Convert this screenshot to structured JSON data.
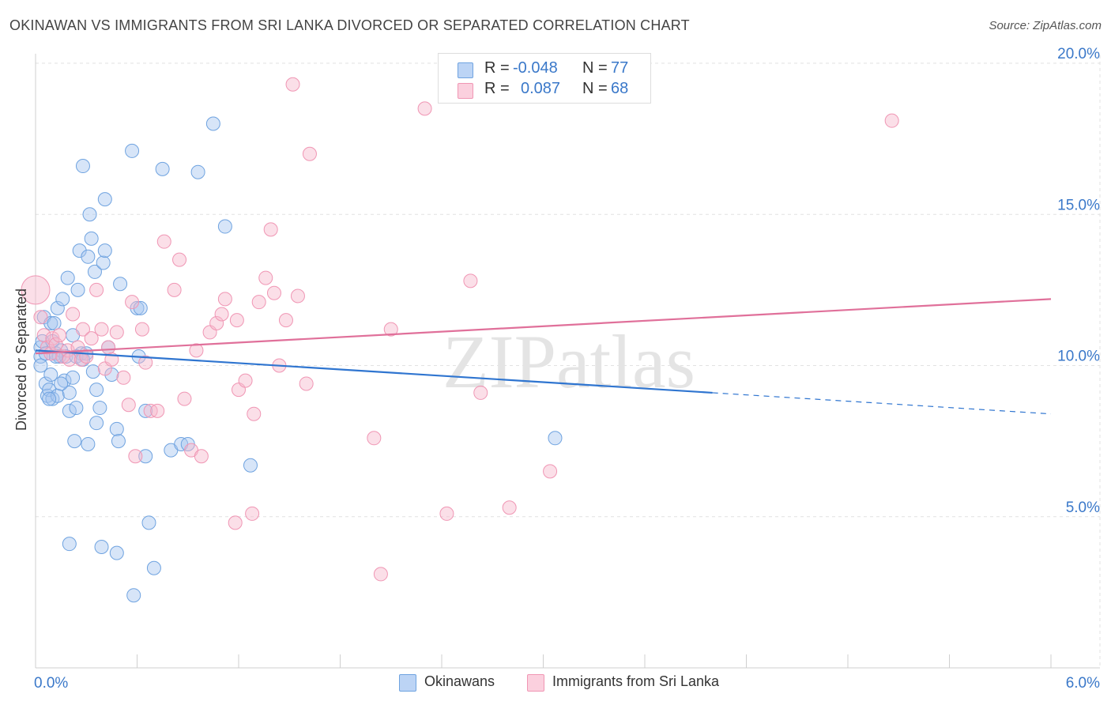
{
  "title": "OKINAWAN VS IMMIGRANTS FROM SRI LANKA DIVORCED OR SEPARATED CORRELATION CHART",
  "source": "Source: ZipAtlas.com",
  "watermark": "ZIPatlas",
  "legend_top": [
    {
      "r_label": "R =",
      "r_value": "-0.048",
      "n_label": "N =",
      "n_value": "77",
      "color": "#6fa3e0"
    },
    {
      "r_label": "R =",
      "r_value": "0.087",
      "n_label": "N =",
      "n_value": "68",
      "color": "#f096b4"
    }
  ],
  "legend_bottom": [
    {
      "label": "Okinawans",
      "color": "#6fa3e0"
    },
    {
      "label": "Immigrants from Sri Lanka",
      "color": "#f096b4"
    }
  ],
  "chart_data": {
    "type": "scatter",
    "title": "OKINAWAN VS IMMIGRANTS FROM SRI LANKA DIVORCED OR SEPARATED CORRELATION CHART",
    "xlabel": "",
    "ylabel": "Divorced or Separated",
    "xlim": [
      0,
      6
    ],
    "ylim": [
      0,
      20
    ],
    "x_tick_labels": [
      "0.0%",
      "6.0%"
    ],
    "y_ticks": [
      5,
      10,
      15,
      20
    ],
    "y_tick_labels": [
      "5.0%",
      "10.0%",
      "15.0%",
      "20.0%"
    ],
    "grid": true,
    "legend_position": "top-center",
    "series": [
      {
        "name": "Okinawans",
        "color": "#6fa3e0",
        "trend": {
          "x": [
            0.0,
            4.0
          ],
          "y": [
            10.5,
            9.1
          ],
          "dashed_to": [
            6.0,
            8.4
          ],
          "color": "#2f75d0"
        },
        "points": [
          [
            0.03,
            10.6
          ],
          [
            0.03,
            10.3
          ],
          [
            0.03,
            10.0
          ],
          [
            0.04,
            10.8
          ],
          [
            0.05,
            11.6
          ],
          [
            0.06,
            10.4
          ],
          [
            0.06,
            9.4
          ],
          [
            0.07,
            9.0
          ],
          [
            0.08,
            9.2
          ],
          [
            0.09,
            11.4
          ],
          [
            0.09,
            9.7
          ],
          [
            0.1,
            8.9
          ],
          [
            0.1,
            10.8
          ],
          [
            0.11,
            11.4
          ],
          [
            0.12,
            10.4
          ],
          [
            0.13,
            11.9
          ],
          [
            0.13,
            9.0
          ],
          [
            0.14,
            10.3
          ],
          [
            0.15,
            10.5
          ],
          [
            0.16,
            12.2
          ],
          [
            0.17,
            9.5
          ],
          [
            0.18,
            10.3
          ],
          [
            0.19,
            12.9
          ],
          [
            0.2,
            8.5
          ],
          [
            0.2,
            9.1
          ],
          [
            0.22,
            11.0
          ],
          [
            0.23,
            7.5
          ],
          [
            0.24,
            8.6
          ],
          [
            0.25,
            12.5
          ],
          [
            0.26,
            13.8
          ],
          [
            0.27,
            10.4
          ],
          [
            0.28,
            16.6
          ],
          [
            0.3,
            10.4
          ],
          [
            0.31,
            7.4
          ],
          [
            0.31,
            13.6
          ],
          [
            0.32,
            15.0
          ],
          [
            0.33,
            14.2
          ],
          [
            0.34,
            9.8
          ],
          [
            0.35,
            13.1
          ],
          [
            0.36,
            8.1
          ],
          [
            0.38,
            8.6
          ],
          [
            0.4,
            13.4
          ],
          [
            0.41,
            15.5
          ],
          [
            0.41,
            13.8
          ],
          [
            0.43,
            10.6
          ],
          [
            0.45,
            9.7
          ],
          [
            0.48,
            7.9
          ],
          [
            0.49,
            7.5
          ],
          [
            0.5,
            12.7
          ],
          [
            0.57,
            17.1
          ],
          [
            0.61,
            10.3
          ],
          [
            0.6,
            11.9
          ],
          [
            0.62,
            11.9
          ],
          [
            0.65,
            8.5
          ],
          [
            0.65,
            7.0
          ],
          [
            0.67,
            4.8
          ],
          [
            0.7,
            3.3
          ],
          [
            0.75,
            16.5
          ],
          [
            0.8,
            7.2
          ],
          [
            0.86,
            7.4
          ],
          [
            0.9,
            7.4
          ],
          [
            0.96,
            16.4
          ],
          [
            1.05,
            18.0
          ],
          [
            1.12,
            14.6
          ],
          [
            1.27,
            6.7
          ],
          [
            3.07,
            7.6
          ],
          [
            0.2,
            4.1
          ],
          [
            0.39,
            4.0
          ],
          [
            0.48,
            3.8
          ],
          [
            0.58,
            2.4
          ],
          [
            0.24,
            10.3
          ],
          [
            0.12,
            10.3
          ],
          [
            0.15,
            9.4
          ],
          [
            0.22,
            9.6
          ],
          [
            0.08,
            8.9
          ],
          [
            0.36,
            9.2
          ],
          [
            0.28,
            10.2
          ]
        ]
      },
      {
        "name": "Immigrants from Sri Lanka",
        "color": "#f096b4",
        "trend": {
          "x": [
            0.0,
            6.0
          ],
          "y": [
            10.4,
            12.2
          ],
          "color": "#e0709a"
        },
        "points": [
          [
            0.0,
            12.5
          ],
          [
            0.03,
            11.6
          ],
          [
            0.05,
            11.0
          ],
          [
            0.07,
            10.6
          ],
          [
            0.09,
            10.4
          ],
          [
            0.1,
            10.9
          ],
          [
            0.12,
            10.7
          ],
          [
            0.14,
            11.0
          ],
          [
            0.16,
            10.3
          ],
          [
            0.19,
            10.5
          ],
          [
            0.2,
            10.2
          ],
          [
            0.22,
            11.7
          ],
          [
            0.25,
            10.6
          ],
          [
            0.27,
            10.2
          ],
          [
            0.28,
            11.2
          ],
          [
            0.3,
            10.3
          ],
          [
            0.33,
            10.9
          ],
          [
            0.36,
            12.5
          ],
          [
            0.39,
            11.2
          ],
          [
            0.41,
            9.9
          ],
          [
            0.43,
            10.6
          ],
          [
            0.45,
            10.2
          ],
          [
            0.48,
            11.1
          ],
          [
            0.52,
            9.6
          ],
          [
            0.55,
            8.7
          ],
          [
            0.57,
            12.1
          ],
          [
            0.59,
            7.0
          ],
          [
            0.63,
            11.2
          ],
          [
            0.65,
            10.1
          ],
          [
            0.68,
            8.5
          ],
          [
            0.72,
            8.5
          ],
          [
            0.76,
            14.1
          ],
          [
            0.82,
            12.5
          ],
          [
            0.85,
            13.5
          ],
          [
            0.88,
            8.9
          ],
          [
            0.92,
            7.2
          ],
          [
            0.95,
            10.5
          ],
          [
            0.98,
            7.0
          ],
          [
            1.03,
            11.1
          ],
          [
            1.07,
            11.4
          ],
          [
            1.1,
            11.7
          ],
          [
            1.12,
            12.2
          ],
          [
            1.18,
            4.8
          ],
          [
            1.19,
            11.5
          ],
          [
            1.2,
            9.2
          ],
          [
            1.24,
            9.5
          ],
          [
            1.28,
            5.1
          ],
          [
            1.29,
            8.4
          ],
          [
            1.32,
            12.1
          ],
          [
            1.36,
            12.9
          ],
          [
            1.39,
            14.5
          ],
          [
            1.41,
            12.4
          ],
          [
            1.44,
            10.0
          ],
          [
            1.48,
            11.5
          ],
          [
            1.52,
            19.3
          ],
          [
            1.55,
            12.3
          ],
          [
            1.6,
            9.4
          ],
          [
            1.62,
            17.0
          ],
          [
            2.0,
            7.6
          ],
          [
            2.04,
            3.1
          ],
          [
            2.1,
            11.2
          ],
          [
            2.3,
            18.5
          ],
          [
            2.43,
            5.1
          ],
          [
            2.57,
            12.8
          ],
          [
            2.63,
            9.1
          ],
          [
            2.8,
            5.3
          ],
          [
            3.04,
            6.5
          ],
          [
            5.06,
            18.1
          ]
        ]
      }
    ]
  }
}
